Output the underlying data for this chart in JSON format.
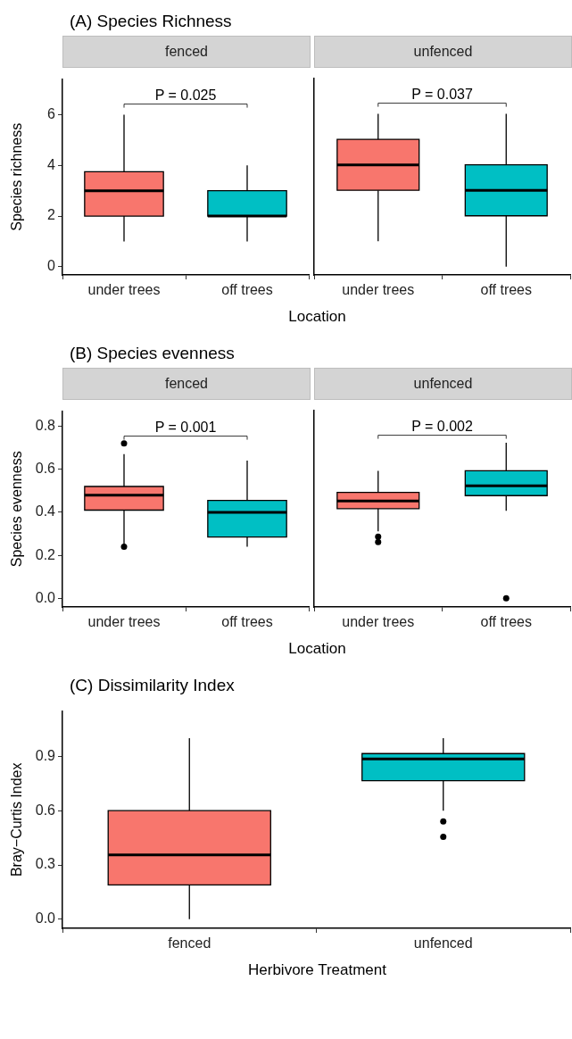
{
  "chart_data": [
    {
      "type": "box",
      "title": "(A) Species Richness",
      "subtitle": "fenced",
      "xlabel": "Location",
      "ylabel": "Species richness",
      "categories": [
        "under trees",
        "off trees"
      ],
      "colors": [
        "#f8766d",
        "#00bfc4"
      ],
      "boxes": [
        {
          "low": 1,
          "q1": 2,
          "median": 3,
          "q3": 3.75,
          "high": 6
        },
        {
          "low": 1,
          "q1": 2,
          "median": 2,
          "q3": 3,
          "high": 4
        }
      ],
      "ylim": [
        -0.32,
        7.4
      ],
      "yticks": [
        0,
        2,
        4,
        6
      ],
      "annotations": [
        "P = 0.025"
      ]
    },
    {
      "type": "box",
      "subtitle": "unfenced",
      "categories": [
        "under trees",
        "off trees"
      ],
      "colors": [
        "#f8766d",
        "#00bfc4"
      ],
      "boxes": [
        {
          "low": 1,
          "q1": 3,
          "median": 4,
          "q3": 5,
          "high": 6
        },
        {
          "low": 0,
          "q1": 2,
          "median": 3,
          "q3": 4,
          "high": 6
        }
      ],
      "ylim": [
        -0.32,
        7.4
      ],
      "tick_labels": "x",
      "annotations": [
        "P = 0.037"
      ]
    },
    {
      "type": "box",
      "title": "(B) Species evenness",
      "subtitle": "fenced",
      "xlabel": "Location",
      "ylabel": "Species evenness",
      "categories": [
        "under trees",
        "off trees"
      ],
      "colors": [
        "#f8766d",
        "#00bfc4"
      ],
      "boxes": [
        {
          "low": 0.25,
          "q1": 0.41,
          "median": 0.48,
          "q3": 0.52,
          "high": 0.67,
          "outliers": [
            0.72,
            0.24
          ]
        },
        {
          "low": 0.24,
          "q1": 0.285,
          "median": 0.4,
          "q3": 0.455,
          "high": 0.64
        }
      ],
      "ylim": [
        -0.04,
        0.87
      ],
      "yticks": [
        {
          "value": 0,
          "label": "0.0"
        },
        0.2,
        0.4,
        0.6,
        0.8
      ],
      "annotations": [
        "P = 0.001"
      ]
    },
    {
      "type": "box",
      "subtitle": "unfenced",
      "categories": [
        "under trees",
        "off trees"
      ],
      "colors": [
        "#f8766d",
        "#00bfc4"
      ],
      "boxes": [
        {
          "low": 0.31,
          "q1": 0.415,
          "median": 0.45,
          "q3": 0.49,
          "high": 0.59,
          "outliers": [
            0.285,
            0.26
          ]
        },
        {
          "low": 0.405,
          "q1": 0.475,
          "median": 0.52,
          "q3": 0.59,
          "high": 0.72,
          "outliers": [
            0
          ]
        }
      ],
      "ylim": [
        -0.04,
        0.87
      ],
      "tick_labels": "x",
      "annotations": [
        "P = 0.002"
      ]
    },
    {
      "type": "box",
      "title": "(C) Dissimilarity Index",
      "xlabel": "Herbivore Treatment",
      "ylabel": "Bray−Curtis Index",
      "categories": [
        "fenced",
        "unfenced"
      ],
      "colors": [
        "#f8766d",
        "#00bfc4"
      ],
      "boxes": [
        {
          "low": 0,
          "q1": 0.19,
          "median": 0.355,
          "q3": 0.6,
          "high": 1.0
        },
        {
          "low": 0.6,
          "q1": 0.765,
          "median": 0.885,
          "q3": 0.915,
          "high": 1.0,
          "outliers": [
            0.54,
            0.455
          ]
        }
      ],
      "ylim": [
        -0.05,
        1.15
      ],
      "yticks": [
        {
          "value": 0,
          "label": "0.0"
        },
        0.3,
        0.6,
        0.9
      ]
    }
  ]
}
